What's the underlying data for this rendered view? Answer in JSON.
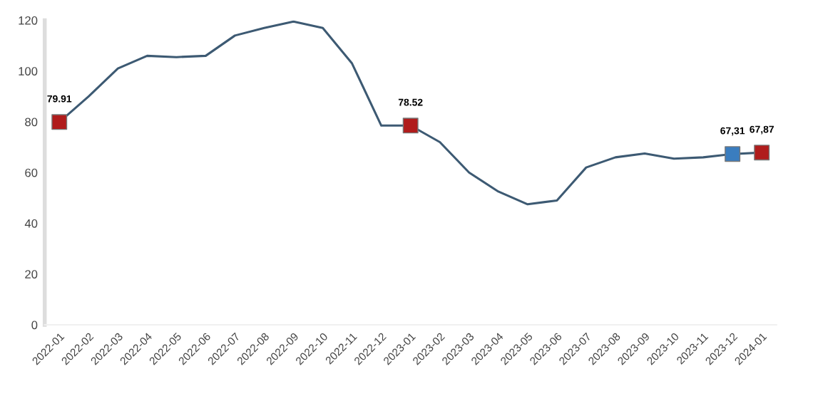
{
  "chart_data": {
    "type": "line",
    "categories": [
      "2022-01",
      "2022-02",
      "2022-03",
      "2022-04",
      "2022-05",
      "2022-06",
      "2022-07",
      "2022-08",
      "2022-09",
      "2022-10",
      "2022-11",
      "2022-12",
      "2023-01",
      "2023-02",
      "2023-03",
      "2023-04",
      "2023-05",
      "2023-06",
      "2023-07",
      "2023-08",
      "2023-09",
      "2023-10",
      "2023-11",
      "2023-12",
      "2024-01"
    ],
    "series": [
      {
        "color": "#3d5a73",
        "values": [
          79.91,
          90,
          101,
          106,
          105.5,
          106,
          114,
          117,
          119.5,
          117,
          103,
          78.5,
          78.52,
          72,
          60,
          52.5,
          47.5,
          49,
          62,
          66,
          67.5,
          65.5,
          66,
          67.31,
          67.87
        ]
      },
      {
        "type": "scatter",
        "marker": "square",
        "values": [
          79.91,
          null,
          null,
          null,
          null,
          null,
          null,
          null,
          null,
          null,
          null,
          null,
          78.52,
          null,
          null,
          null,
          null,
          null,
          null,
          null,
          null,
          null,
          null,
          67.31,
          67.87
        ],
        "colors": [
          "#b01c1c",
          null,
          null,
          null,
          null,
          null,
          null,
          null,
          null,
          null,
          null,
          null,
          "#b01c1c",
          null,
          null,
          null,
          null,
          null,
          null,
          null,
          null,
          null,
          null,
          "#3a7dbf",
          "#b01c1c"
        ],
        "value_labels": [
          "79.91",
          null,
          null,
          null,
          null,
          null,
          null,
          null,
          null,
          null,
          null,
          null,
          "78.52",
          null,
          null,
          null,
          null,
          null,
          null,
          null,
          null,
          null,
          null,
          "67,31",
          "67,87"
        ]
      }
    ],
    "ylim": [
      0,
      120
    ],
    "yticks": [
      0,
      20,
      40,
      60,
      80,
      100,
      120
    ],
    "grid": false,
    "legend": false
  }
}
